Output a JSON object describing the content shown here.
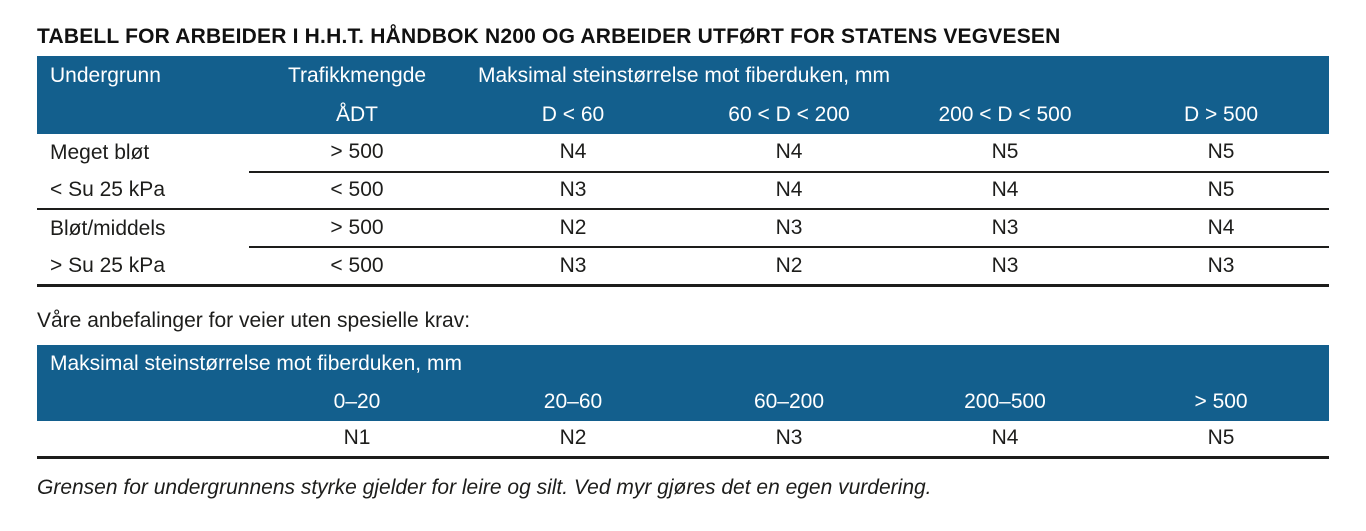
{
  "title": "TABELL FOR ARBEIDER I H.H.T. HÅNDBOK N200 OG ARBEIDER UTFØRT FOR STATENS VEGVESEN",
  "table1": {
    "headers": {
      "undergrunn": "Undergrunn",
      "trafikkmengde": "Trafikkmengde",
      "maksimal": "Maksimal steinstørrelse mot fiberduken, mm",
      "adt": "ÅDT",
      "size_cols": [
        "D < 60",
        "60 < D < 200",
        "200 < D < 500",
        "D > 500"
      ]
    },
    "groups": [
      {
        "label_line1": "Meget bløt",
        "label_line2": "< Su 25 kPa",
        "rows": [
          {
            "adt": "> 500",
            "values": [
              "N4",
              "N4",
              "N5",
              "N5"
            ]
          },
          {
            "adt": "< 500",
            "values": [
              "N3",
              "N4",
              "N4",
              "N5"
            ]
          }
        ]
      },
      {
        "label_line1": "Bløt/middels",
        "label_line2": "> Su 25 kPa",
        "rows": [
          {
            "adt": "> 500",
            "values": [
              "N2",
              "N3",
              "N3",
              "N4"
            ]
          },
          {
            "adt": "< 500",
            "values": [
              "N3",
              "N2",
              "N3",
              "N3"
            ]
          }
        ]
      }
    ]
  },
  "recommendation_heading": "Våre anbefalinger for veier uten spesielle krav:",
  "table2": {
    "header": "Maksimal steinstørrelse mot fiberduken, mm",
    "size_cols": [
      "0–20",
      "20–60",
      "60–200",
      "200–500",
      "> 500"
    ],
    "values": [
      "N1",
      "N2",
      "N3",
      "N4",
      "N5"
    ]
  },
  "footnote": "Grensen for undergrunnens styrke gjelder for leire og silt. Ved myr gjøres det en egen vurdering.",
  "colors": {
    "header_blue": "#135f8d",
    "header_text": "#ffffff",
    "body_text": "#1d1d1b",
    "rule": "#1d1d1b"
  }
}
